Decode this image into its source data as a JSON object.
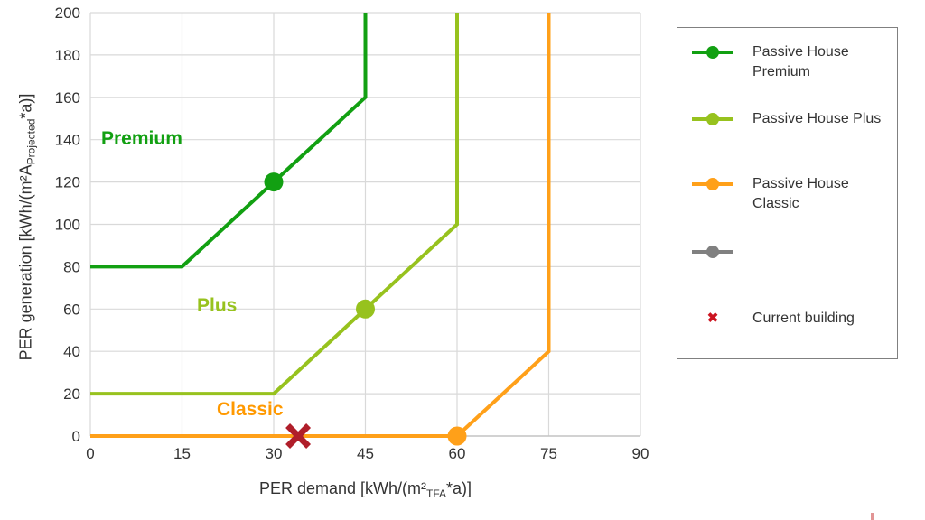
{
  "axes": {
    "y_label": {
      "prefix": "PER generation [kWh/(m²A",
      "sub": "Projected",
      "suffix": "*a)]"
    },
    "x_label": {
      "prefix": "PER demand [kWh/(m²",
      "sub": "TFA",
      "suffix": "*a)]"
    }
  },
  "legend": {
    "items": [
      {
        "label": "Passive House Premium",
        "marker": "line-dot",
        "color": "#12a012"
      },
      {
        "label": "Passive House Plus",
        "marker": "line-dot",
        "color": "#97c21e"
      },
      {
        "label": "Passive House Classic",
        "marker": "line-dot",
        "color": "#ffa019"
      },
      {
        "label": "",
        "marker": "line-dot",
        "color": "#808080"
      },
      {
        "label": "Current building",
        "marker": "x",
        "color": "#cc1420"
      }
    ]
  },
  "chart_data": {
    "type": "line",
    "title": "",
    "xlabel": "PER demand [kWh/(m²TFA*a)]",
    "ylabel": "PER generation [kWh/(m²AProjected*a)]",
    "xlim": [
      0,
      90
    ],
    "ylim": [
      0,
      200
    ],
    "x_ticks": [
      0,
      15,
      30,
      45,
      60,
      75,
      90
    ],
    "y_ticks": [
      0,
      20,
      40,
      60,
      80,
      100,
      120,
      140,
      160,
      180,
      200
    ],
    "grid": true,
    "grid_color": "#d9d9d9",
    "axis_color": "#c6c6c6",
    "legend_position": "right",
    "series": [
      {
        "name": "Passive House Premium",
        "color": "#12a012",
        "points": [
          [
            0,
            80
          ],
          [
            15,
            80
          ],
          [
            45,
            160
          ],
          [
            45,
            200
          ]
        ],
        "marker_point": [
          30,
          120
        ]
      },
      {
        "name": "Passive House Plus",
        "color": "#97c21e",
        "points": [
          [
            0,
            20
          ],
          [
            30,
            20
          ],
          [
            60,
            100
          ],
          [
            60,
            200
          ]
        ],
        "marker_point": [
          45,
          60
        ]
      },
      {
        "name": "Passive House Classic",
        "color": "#ffa019",
        "points": [
          [
            0,
            0
          ],
          [
            60,
            0
          ],
          [
            75,
            40
          ],
          [
            75,
            200
          ]
        ],
        "marker_point": [
          60,
          0
        ]
      }
    ],
    "current_building": {
      "x": 34,
      "y": 0,
      "color": "#b01e2a",
      "label": "Current building"
    },
    "annotations": [
      {
        "text": "Premium",
        "color": "#12a012",
        "x": 10.3,
        "y": 140
      },
      {
        "text": "Plus",
        "color": "#97c21e",
        "x": 21.9,
        "y": 61
      },
      {
        "text": "Classic",
        "color": "#ff9900",
        "x": 27.5,
        "y": 12
      }
    ]
  }
}
